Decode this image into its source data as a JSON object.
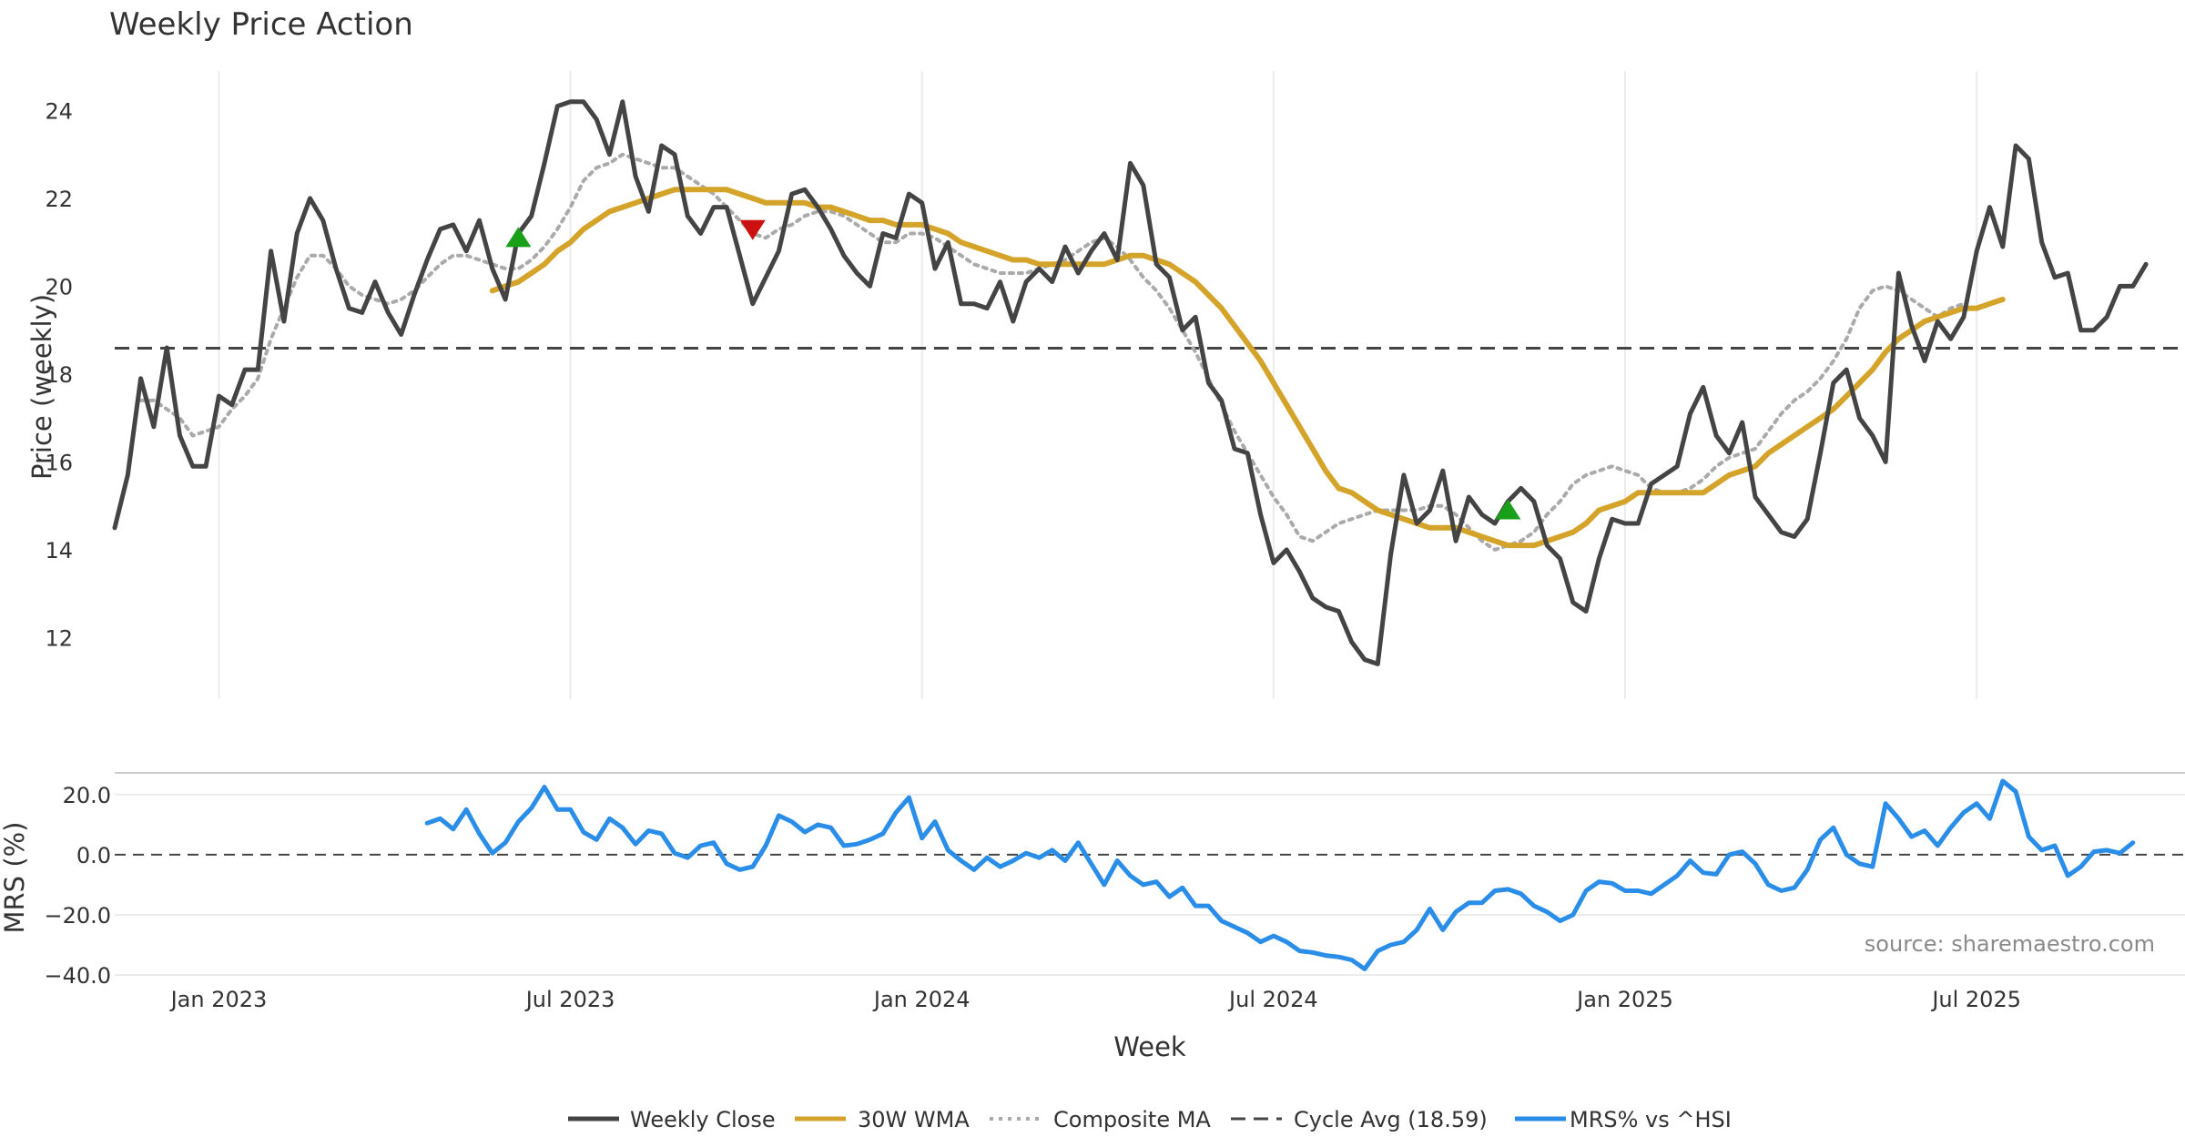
{
  "chart_data": {
    "type": "line",
    "title": "Weekly Price Action",
    "xlabel": "Week",
    "source_note": "source: sharemaestro.com",
    "x_tick_labels": [
      "Jan 2023",
      "Jul 2023",
      "Jan 2024",
      "Jul 2024",
      "Jan 2025",
      "Jul 2025"
    ],
    "x_tick_weeks": [
      9,
      36,
      63,
      90,
      117,
      144
    ],
    "x_range_weeks": [
      1,
      160
    ],
    "legend": {
      "placement": "bottom-center",
      "entries": [
        "Weekly Close",
        "30W WMA",
        "Composite MA",
        "Cycle Avg (18.59)",
        "MRS% vs ^HSI"
      ]
    },
    "price_panel": {
      "ylabel": "Price (weekly)",
      "ylim": [
        10.6,
        24.9
      ],
      "y_ticks": [
        "12",
        "14",
        "16",
        "18",
        "20",
        "22",
        "24"
      ],
      "y_tick_values": [
        12,
        14,
        16,
        18,
        20,
        22,
        24
      ],
      "cycle_avg": 18.59,
      "series": [
        {
          "name": "Weekly Close",
          "color": "#444444",
          "start_week": 1,
          "values": [
            14.5,
            15.7,
            17.9,
            16.8,
            18.6,
            16.6,
            15.9,
            15.9,
            17.5,
            17.3,
            18.1,
            18.1,
            20.8,
            19.2,
            21.2,
            22.0,
            21.5,
            20.4,
            19.5,
            19.4,
            20.1,
            19.4,
            18.9,
            19.8,
            20.6,
            21.3,
            21.4,
            20.8,
            21.5,
            20.4,
            19.7,
            21.2,
            21.6,
            22.8,
            24.1,
            24.2,
            24.2,
            23.8,
            23.0,
            24.2,
            22.5,
            21.7,
            23.2,
            23.0,
            21.6,
            21.2,
            21.8,
            21.8,
            20.7,
            19.6,
            20.2,
            20.8,
            22.1,
            22.2,
            21.8,
            21.3,
            20.7,
            20.3,
            20.0,
            21.2,
            21.1,
            22.1,
            21.9,
            20.4,
            21.0,
            19.6,
            19.6,
            19.5,
            20.1,
            19.2,
            20.1,
            20.4,
            20.1,
            20.9,
            20.3,
            20.8,
            21.2,
            20.6,
            22.8,
            22.3,
            20.5,
            20.2,
            19.0,
            19.3,
            17.8,
            17.4,
            16.3,
            16.2,
            14.8,
            13.7,
            14.0,
            13.5,
            12.9,
            12.7,
            12.6,
            11.9,
            11.5,
            11.4,
            13.9,
            15.7,
            14.6,
            14.9,
            15.8,
            14.2,
            15.2,
            14.8,
            14.6,
            15.1,
            15.4,
            15.1,
            14.1,
            13.8,
            12.8,
            12.6,
            13.8,
            14.7,
            14.6,
            14.6,
            15.5,
            15.7,
            15.9,
            17.1,
            17.7,
            16.6,
            16.2,
            16.9,
            15.2,
            14.8,
            14.4,
            14.3,
            14.7,
            16.2,
            17.8,
            18.1,
            17.0,
            16.6,
            16.0,
            20.3,
            19.1,
            18.3,
            19.2,
            18.8,
            19.3,
            20.8,
            21.8,
            20.9,
            23.2,
            22.9,
            21.0,
            20.2,
            20.3,
            19.0,
            19.0,
            19.3,
            20.0,
            20.0,
            20.5
          ]
        },
        {
          "name": "30W WMA",
          "color": "#d4a32a",
          "start_week": 30,
          "values": [
            19.9,
            20.0,
            20.1,
            20.3,
            20.5,
            20.8,
            21.0,
            21.3,
            21.5,
            21.7,
            21.8,
            21.9,
            22.0,
            22.1,
            22.2,
            22.2,
            22.2,
            22.2,
            22.2,
            22.1,
            22.0,
            21.9,
            21.9,
            21.9,
            21.9,
            21.8,
            21.8,
            21.7,
            21.6,
            21.5,
            21.5,
            21.4,
            21.4,
            21.4,
            21.3,
            21.2,
            21.0,
            20.9,
            20.8,
            20.7,
            20.6,
            20.6,
            20.5,
            20.5,
            20.5,
            20.5,
            20.5,
            20.5,
            20.6,
            20.7,
            20.7,
            20.6,
            20.5,
            20.3,
            20.1,
            19.8,
            19.5,
            19.1,
            18.7,
            18.3,
            17.8,
            17.3,
            16.8,
            16.3,
            15.8,
            15.4,
            15.3,
            15.1,
            14.9,
            14.8,
            14.7,
            14.6,
            14.5,
            14.5,
            14.5,
            14.4,
            14.3,
            14.2,
            14.1,
            14.1,
            14.1,
            14.2,
            14.3,
            14.4,
            14.6,
            14.9,
            15.0,
            15.1,
            15.3,
            15.3,
            15.3,
            15.3,
            15.3,
            15.3,
            15.5,
            15.7,
            15.8,
            15.9,
            16.2,
            16.4,
            16.6,
            16.8,
            17.0,
            17.2,
            17.5,
            17.8,
            18.1,
            18.5,
            18.8,
            19.0,
            19.2,
            19.3,
            19.4,
            19.5,
            19.5,
            19.6,
            19.7
          ]
        },
        {
          "name": "Composite MA",
          "color": "#aaaaaa",
          "start_week": 3,
          "values": [
            17.4,
            17.4,
            17.2,
            17.0,
            16.6,
            16.7,
            16.8,
            17.2,
            17.5,
            17.9,
            18.8,
            19.5,
            20.2,
            20.7,
            20.7,
            20.4,
            20.0,
            19.8,
            19.7,
            19.6,
            19.7,
            19.9,
            20.2,
            20.5,
            20.7,
            20.7,
            20.6,
            20.5,
            20.4,
            20.4,
            20.6,
            20.9,
            21.3,
            21.8,
            22.4,
            22.7,
            22.8,
            23.0,
            22.9,
            22.8,
            22.7,
            22.7,
            22.5,
            22.3,
            22.1,
            21.8,
            21.5,
            21.2,
            21.1,
            21.3,
            21.4,
            21.6,
            21.7,
            21.7,
            21.6,
            21.4,
            21.2,
            21.0,
            21.0,
            21.2,
            21.2,
            21.1,
            20.9,
            20.7,
            20.5,
            20.4,
            20.3,
            20.3,
            20.3,
            20.4,
            20.5,
            20.6,
            20.8,
            21.0,
            21.1,
            20.9,
            20.6,
            20.2,
            19.9,
            19.5,
            19.0,
            18.5,
            17.9,
            17.3,
            16.7,
            16.2,
            15.7,
            15.2,
            14.8,
            14.3,
            14.2,
            14.4,
            14.6,
            14.7,
            14.8,
            14.9,
            14.9,
            14.9,
            14.9,
            15.0,
            15.0,
            14.8,
            14.5,
            14.2,
            14.0,
            14.1,
            14.2,
            14.4,
            14.8,
            15.1,
            15.5,
            15.7,
            15.8,
            15.9,
            15.8,
            15.7,
            15.4,
            15.3,
            15.3,
            15.4,
            15.6,
            15.9,
            16.1,
            16.2,
            16.3,
            16.7,
            17.1,
            17.4,
            17.6,
            17.9,
            18.3,
            18.8,
            19.5,
            19.9,
            20.0,
            19.9,
            19.7,
            19.5,
            19.3,
            19.5,
            19.6
          ]
        }
      ]
    },
    "markers": [
      {
        "type": "buy",
        "week": 32,
        "price": 21.1,
        "color": "#18a018"
      },
      {
        "type": "sell",
        "week": 50,
        "price": 21.3,
        "color": "#cc1111"
      },
      {
        "type": "buy",
        "week": 108,
        "price": 14.9,
        "color": "#18a018"
      }
    ],
    "mrs_panel": {
      "ylabel": "MRS (%)",
      "ylim": [
        -41.5,
        26
      ],
      "y_ticks": [
        "20.0",
        "0.0",
        "−20.0",
        "−40.0"
      ],
      "y_tick_values": [
        20,
        0,
        -20,
        -40
      ],
      "zero_line": 0,
      "series": [
        {
          "name": "MRS% vs ^HSI",
          "color": "#2a8ee8",
          "start_week": 25,
          "values": [
            10.5,
            12.0,
            8.5,
            15.0,
            7.0,
            0.5,
            4.0,
            11.0,
            15.5,
            22.5,
            15.0,
            15.0,
            7.5,
            5.0,
            12.0,
            9.0,
            3.5,
            8.0,
            7.0,
            0.5,
            -1.0,
            3.0,
            4.0,
            -3.0,
            -5.0,
            -4.0,
            3.0,
            13.0,
            11.0,
            7.5,
            10.0,
            9.0,
            3.0,
            3.5,
            5.0,
            7.0,
            14.0,
            19.0,
            5.5,
            11.0,
            1.5,
            -2.0,
            -5.0,
            -1.0,
            -4.0,
            -2.0,
            0.5,
            -1.0,
            1.5,
            -2.0,
            4.0,
            -3.0,
            -10.0,
            -2.0,
            -7.0,
            -10.0,
            -9.0,
            -14.0,
            -11.0,
            -17.0,
            -17.0,
            -22.0,
            -24.0,
            -26.0,
            -29.0,
            -27.0,
            -29.0,
            -32.0,
            -32.5,
            -33.5,
            -34.0,
            -35.0,
            -38.0,
            -32.0,
            -30.0,
            -29.0,
            -25.0,
            -18.0,
            -25.0,
            -19.0,
            -16.0,
            -16.0,
            -12.0,
            -11.5,
            -13.0,
            -17.0,
            -19.0,
            -22.0,
            -20.0,
            -12.0,
            -9.0,
            -9.5,
            -12.0,
            -12.0,
            -13.0,
            -10.0,
            -7.0,
            -2.0,
            -6.0,
            -6.5,
            0.0,
            1.0,
            -3.0,
            -10.0,
            -12.0,
            -11.0,
            -5.0,
            5.0,
            9.0,
            0.0,
            -3.0,
            -4.0,
            17.0,
            12.0,
            6.0,
            8.0,
            3.0,
            9.0,
            14.0,
            17.0,
            12.0,
            24.5,
            21.0,
            6.0,
            1.5,
            3.0,
            -7.0,
            -4.0,
            1.0,
            1.5,
            0.5,
            4.0
          ]
        }
      ]
    }
  }
}
